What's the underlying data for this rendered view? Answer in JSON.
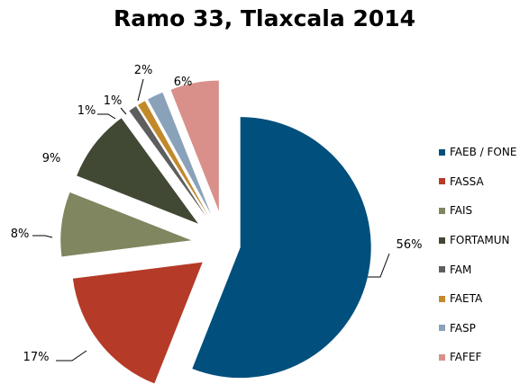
{
  "chart_data": {
    "type": "pie",
    "title": "Ramo 33, Tlaxcala 2014",
    "legend_position": "right",
    "slices": [
      {
        "name": "FAEB / FONE",
        "value": 56,
        "label": "56%",
        "color": "#004f7c"
      },
      {
        "name": "FASSA",
        "value": 17,
        "label": "17%",
        "color": "#b53a28"
      },
      {
        "name": "FAIS",
        "value": 8,
        "label": "8%",
        "color": "#7f8660"
      },
      {
        "name": "FORTAMUN",
        "value": 9,
        "label": "9%",
        "color": "#414833"
      },
      {
        "name": "FAM",
        "value": 1,
        "label": "1%",
        "color": "#5e5e5e"
      },
      {
        "name": "FAETA",
        "value": 1,
        "label": "1%",
        "color": "#c2892b"
      },
      {
        "name": "FASP",
        "value": 2,
        "label": "2%",
        "color": "#8aa1ba"
      },
      {
        "name": "FAFEF",
        "value": 6,
        "label": "6%",
        "color": "#d9908b"
      }
    ]
  }
}
